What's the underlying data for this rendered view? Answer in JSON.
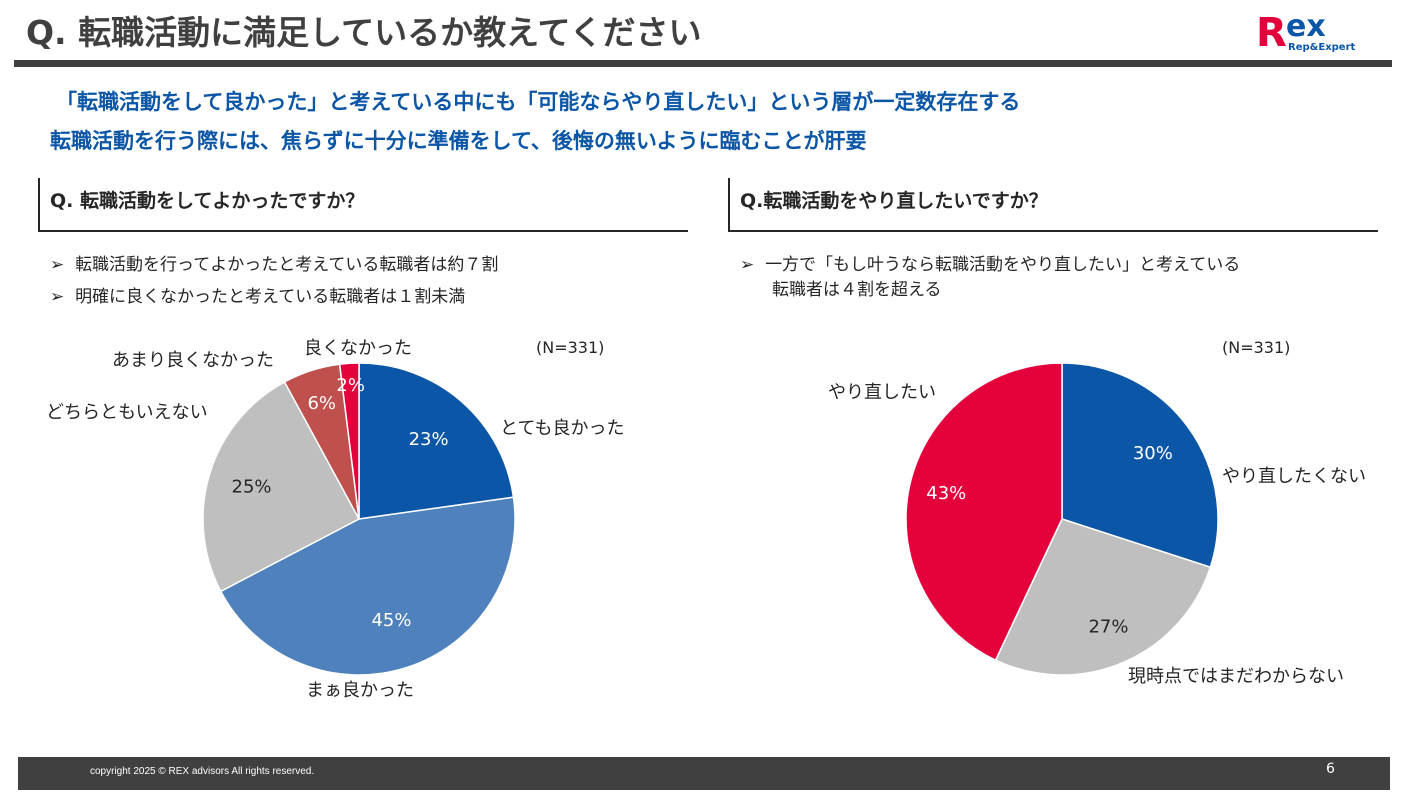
{
  "header": {
    "title": "Q. 転職活動に満足しているか教えてください",
    "logo_text": "Rex Rep&Expert"
  },
  "summary": [
    "「転職活動をして良かった」と考えている中にも「可能ならやり直したい」という層が一定数存在する",
    "転職活動を行う際には、焦らずに十分に準備をして、後悔の無いように臨むことが肝要"
  ],
  "left": {
    "heading": "Q. 転職活動をしてよかったですか？",
    "bullets": [
      "転職活動を行ってよかったと考えている転職者は約７割",
      "明確に良くなかったと考えている転職者は１割未満"
    ],
    "n": "(N=331)"
  },
  "right": {
    "heading": "Q.転職活動をやり直したいですか？",
    "bullets": [
      "一方で「もし叶うなら転職活動をやり直したい」と考えている",
      "転職者は４割を超える"
    ],
    "n": "(N=331)"
  },
  "chart_data": [
    {
      "type": "pie",
      "categories": [
        "とても良かった",
        "まぁ良かった",
        "どちらともいえない",
        "あまり良くなかった",
        "良くなかった"
      ],
      "values": [
        23,
        45,
        25,
        6,
        2
      ],
      "labels": [
        "23%",
        "45%",
        "25%",
        "6%",
        "2%"
      ],
      "colors": [
        "#0B56A6",
        "#4F81BD",
        "#BFBFBF",
        "#C0504D",
        "#E4003B"
      ]
    },
    {
      "type": "pie",
      "categories": [
        "やり直したくない",
        "現時点ではまだわからない",
        "やり直したい"
      ],
      "values": [
        30,
        27,
        43
      ],
      "labels": [
        "30%",
        "27%",
        "43%"
      ],
      "colors": [
        "#0B56A6",
        "#BFBFBF",
        "#E4003B"
      ]
    }
  ],
  "footer": {
    "copyright": "copyright 2025 © REX advisors All rights reserved.",
    "page": "6"
  }
}
